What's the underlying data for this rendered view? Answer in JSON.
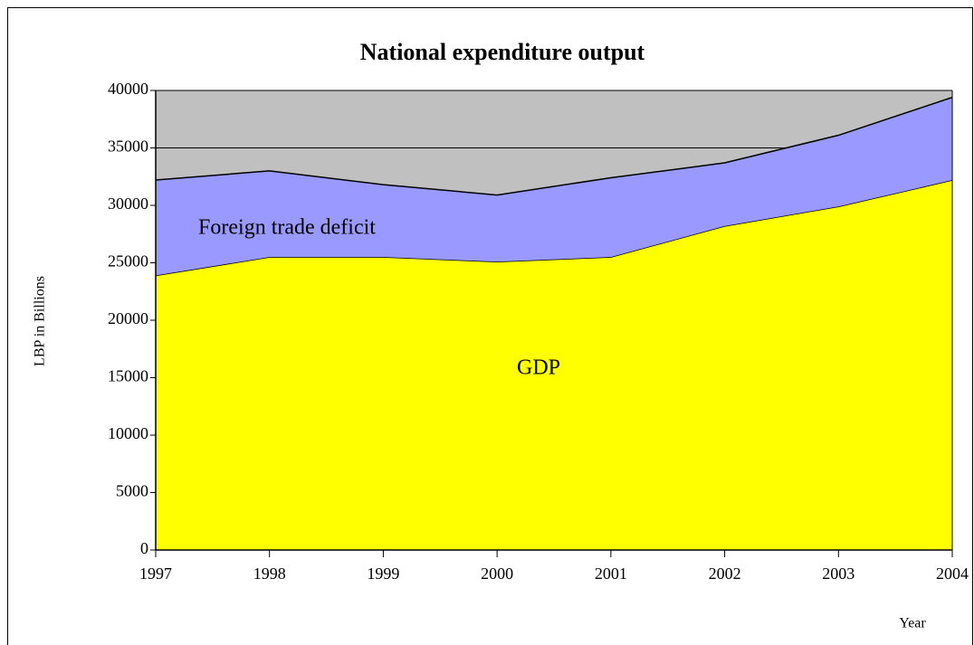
{
  "chart_data": {
    "type": "stacked_area",
    "title": "National expenditure output",
    "x": [
      1997,
      1998,
      1999,
      2000,
      2001,
      2002,
      2003,
      2004
    ],
    "xlim": [
      1997,
      2004
    ],
    "xticks": [
      1997,
      1998,
      1999,
      2000,
      2001,
      2002,
      2003,
      2004
    ],
    "ylim": [
      0,
      40000
    ],
    "yticks": [
      0,
      5000,
      10000,
      15000,
      20000,
      25000,
      30000,
      35000,
      40000
    ],
    "xlabel": "Year",
    "ylabel": "LBP in Billions",
    "grid": true,
    "background": "#c0c0c0",
    "series": [
      {
        "name": "GDP",
        "color": "#ffff00",
        "values": [
          23900,
          25500,
          25500,
          25100,
          25500,
          28200,
          29900,
          32200
        ]
      },
      {
        "name": "Foreign trade deficit",
        "color": "#9999ff",
        "values": [
          8300,
          7500,
          6300,
          5800,
          6900,
          5500,
          6200,
          7200
        ]
      }
    ]
  }
}
